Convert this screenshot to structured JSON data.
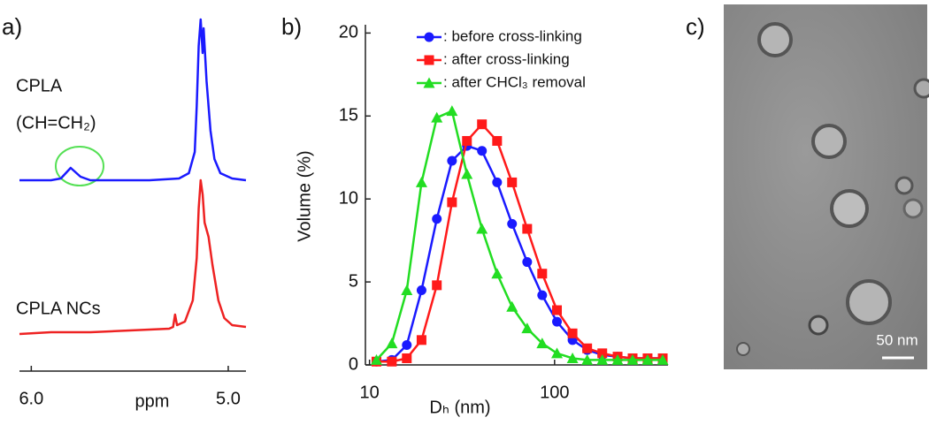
{
  "chart_data": [
    {
      "type": "line",
      "panel_label": "a)",
      "xlabel": "ppm",
      "annotation": "(CH=CH₂)",
      "xlim": [
        6.06,
        4.91
      ],
      "ylim": [
        0,
        100
      ],
      "xticks": [
        {
          "value": 6,
          "label": "6.0"
        },
        {
          "value": 5,
          "label": "5.0"
        }
      ],
      "series": [
        {
          "name": "CPLA",
          "color": "#1a1aff",
          "x": [
            6.06,
            5.9,
            5.85,
            5.8,
            5.75,
            5.7,
            5.4,
            5.25,
            5.2,
            5.17,
            5.16,
            5.15,
            5.14,
            5.13,
            5.125,
            5.11,
            5.09,
            5.07,
            5.04,
            4.98,
            4.91
          ],
          "values": [
            54,
            54,
            54.5,
            57.5,
            55,
            54,
            54,
            54.5,
            56,
            62,
            75,
            92,
            99.5,
            90,
            97,
            82,
            68,
            60,
            56,
            54.5,
            54
          ]
        },
        {
          "name": "CPLA NCs",
          "color": "#ee2222",
          "x": [
            6.06,
            5.9,
            5.7,
            5.5,
            5.3,
            5.28,
            5.27,
            5.26,
            5.22,
            5.18,
            5.16,
            5.15,
            5.14,
            5.13,
            5.12,
            5.1,
            5.08,
            5.05,
            5.02,
            4.98,
            4.91
          ],
          "values": [
            10.5,
            11,
            11,
            11.5,
            12,
            12.5,
            16,
            13,
            14,
            20,
            32,
            46,
            54,
            50,
            42,
            38,
            30,
            20,
            15,
            13,
            12.5
          ]
        }
      ]
    },
    {
      "type": "line",
      "panel_label": "b)",
      "xlabel": "Dₕ (nm)",
      "ylabel": "Volume (%)",
      "log_x": true,
      "xlim": [
        9.5,
        410
      ],
      "ylim": [
        0,
        20.5
      ],
      "xticks": [
        10,
        100
      ],
      "yticks": [
        0,
        5,
        10,
        15,
        20
      ],
      "x": [
        10.9,
        13.2,
        15.9,
        19.1,
        23.1,
        27.9,
        33.6,
        40.5,
        48.9,
        58.9,
        71.1,
        85.7,
        103,
        125,
        150,
        181,
        219,
        264,
        318,
        384
      ],
      "series": [
        {
          "name": ": before cross-linking",
          "color": "#1a1aff",
          "marker": "circle",
          "values": [
            0.2,
            0.3,
            1.2,
            4.5,
            8.8,
            12.3,
            13.2,
            12.9,
            11,
            8.5,
            6.2,
            4.2,
            2.6,
            1.5,
            0.9,
            0.6,
            0.5,
            0.4,
            0.4,
            0.4
          ]
        },
        {
          "name": ": after cross-linking",
          "color": "#ff1a1a",
          "marker": "square",
          "values": [
            0.2,
            0.2,
            0.4,
            1.5,
            4.8,
            9.8,
            13.5,
            14.5,
            13.5,
            11,
            8.2,
            5.5,
            3.3,
            1.9,
            1,
            0.7,
            0.5,
            0.4,
            0.4,
            0.4
          ]
        },
        {
          "name": ": after CHCl₃ removal",
          "color": "#22dd22",
          "marker": "triangle",
          "values": [
            0.3,
            1.3,
            4.5,
            11,
            14.9,
            15.3,
            11.5,
            8.2,
            5.5,
            3.5,
            2.2,
            1.3,
            0.7,
            0.4,
            0.3,
            0.3,
            0.3,
            0.3,
            0.3,
            0.3
          ]
        }
      ]
    }
  ],
  "image": {
    "panel_label": "c)",
    "scale_bar": "50 nm"
  }
}
